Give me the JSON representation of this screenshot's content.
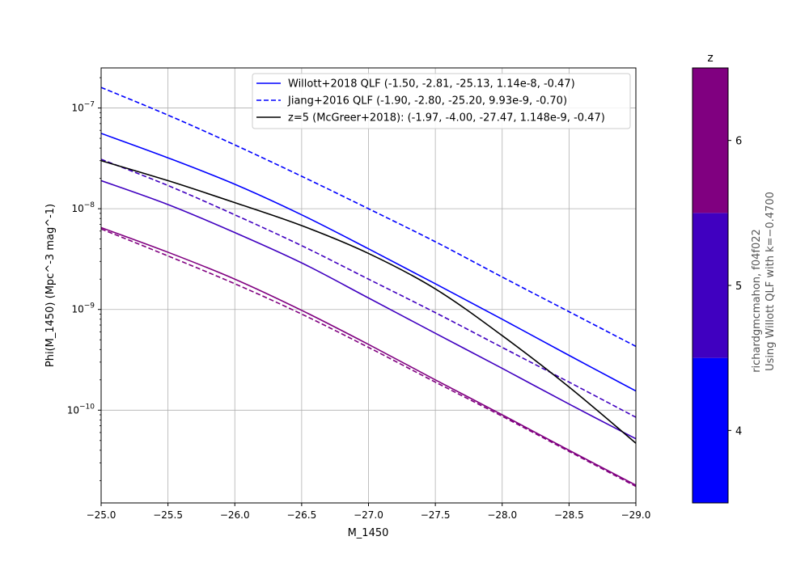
{
  "chart_data": {
    "type": "line",
    "xlabel": "M_1450",
    "ylabel": "Phi(M_1450) (Mpc^-3 mag^-1)",
    "xlim": [
      -25.0,
      -29.0
    ],
    "x_inverted": true,
    "ylim": [
      1.2e-11,
      2.5e-07
    ],
    "yscale": "log",
    "grid": true,
    "legend_position": "upper-right",
    "x_ticks": [
      {
        "value": -25.0,
        "label": "−25.0"
      },
      {
        "value": -25.5,
        "label": "−25.5"
      },
      {
        "value": -26.0,
        "label": "−26.0"
      },
      {
        "value": -26.5,
        "label": "−26.5"
      },
      {
        "value": -27.0,
        "label": "−27.0"
      },
      {
        "value": -27.5,
        "label": "−27.5"
      },
      {
        "value": -28.0,
        "label": "−28.0"
      },
      {
        "value": -28.5,
        "label": "−28.5"
      },
      {
        "value": -29.0,
        "label": "−29.0"
      }
    ],
    "y_ticks": [
      {
        "value": 1e-10,
        "base": "10",
        "exp": "−10"
      },
      {
        "value": 1e-09,
        "base": "10",
        "exp": "−9"
      },
      {
        "value": 1e-08,
        "base": "10",
        "exp": "−8"
      },
      {
        "value": 1e-07,
        "base": "10",
        "exp": "−7"
      }
    ],
    "legend": [
      {
        "label": "Willott+2018 QLF (-1.50, -2.81, -25.13, 1.14e-8, -0.47)",
        "color": "#0000ff",
        "dash": "solid"
      },
      {
        "label": "Jiang+2016 QLF (-1.90, -2.80, -25.20, 9.93e-9, -0.70)",
        "color": "#0000ff",
        "dash": "dashed"
      },
      {
        "label": "z=5 (McGreer+2018): (-1.97, -4.00, -27.47, 1.148e-9, -0.47)",
        "color": "#000000",
        "dash": "solid"
      }
    ],
    "series": [
      {
        "color": "#0000ff",
        "dash": "solid",
        "x": [
          -25.0,
          -25.5,
          -26.0,
          -26.5,
          -27.0,
          -27.5,
          -28.0,
          -28.5,
          -29.0
        ],
        "y": [
          5.6e-08,
          3.2e-08,
          1.75e-08,
          8.7e-09,
          4e-09,
          1.8e-09,
          8e-10,
          3.5e-10,
          1.55e-10
        ]
      },
      {
        "color": "#0000ff",
        "dash": "dashed",
        "x": [
          -25.0,
          -25.5,
          -26.0,
          -26.5,
          -27.0,
          -27.5,
          -28.0,
          -28.5,
          -29.0
        ],
        "y": [
          1.6e-07,
          8.5e-08,
          4.3e-08,
          2.1e-08,
          1e-08,
          4.7e-09,
          2.1e-09,
          9.5e-10,
          4.3e-10
        ]
      },
      {
        "color": "#4000c0",
        "dash": "solid",
        "x": [
          -25.0,
          -25.5,
          -26.0,
          -26.5,
          -27.0,
          -27.5,
          -28.0,
          -28.5,
          -29.0
        ],
        "y": [
          1.9e-08,
          1.1e-08,
          5.8e-09,
          2.9e-09,
          1.3e-09,
          5.8e-10,
          2.6e-10,
          1.15e-10,
          5.2e-11
        ]
      },
      {
        "color": "#4000c0",
        "dash": "dashed",
        "x": [
          -25.0,
          -25.5,
          -26.0,
          -26.5,
          -27.0,
          -27.5,
          -28.0,
          -28.5,
          -29.0
        ],
        "y": [
          3.1e-08,
          1.7e-08,
          8.7e-09,
          4.3e-09,
          2e-09,
          9.3e-10,
          4.2e-10,
          1.9e-10,
          8.5e-11
        ]
      },
      {
        "color": "#800080",
        "dash": "solid",
        "x": [
          -25.0,
          -25.5,
          -26.0,
          -26.5,
          -27.0,
          -27.5,
          -28.0,
          -28.5,
          -29.0
        ],
        "y": [
          6.5e-09,
          3.7e-09,
          2e-09,
          9.8e-10,
          4.5e-10,
          2e-10,
          9e-11,
          4e-11,
          1.8e-11
        ]
      },
      {
        "color": "#800080",
        "dash": "dashed",
        "x": [
          -25.0,
          -25.5,
          -26.0,
          -26.5,
          -27.0,
          -27.5,
          -28.0,
          -28.5,
          -29.0
        ],
        "y": [
          6.3e-09,
          3.4e-09,
          1.8e-09,
          9e-10,
          4.2e-10,
          1.9e-10,
          8.7e-11,
          3.9e-11,
          1.75e-11
        ]
      },
      {
        "color": "#000000",
        "dash": "solid",
        "x": [
          -25.0,
          -25.5,
          -26.0,
          -26.5,
          -27.0,
          -27.5,
          -28.0,
          -28.5,
          -29.0
        ],
        "y": [
          3e-08,
          1.9e-08,
          1.15e-08,
          6.8e-09,
          3.6e-09,
          1.6e-09,
          5.5e-10,
          1.7e-10,
          4.7e-11
        ]
      }
    ],
    "colorbar": {
      "title": "z",
      "range": [
        3.5,
        6.5
      ],
      "bands": [
        {
          "from": 3.5,
          "to": 4.5,
          "color": "#0000ff"
        },
        {
          "from": 4.5,
          "to": 5.5,
          "color": "#4000c0"
        },
        {
          "from": 5.5,
          "to": 6.5,
          "color": "#800080"
        }
      ],
      "ticks": [
        {
          "value": 4,
          "label": "4"
        },
        {
          "value": 5,
          "label": "5"
        },
        {
          "value": 6,
          "label": "6"
        }
      ],
      "side_text": [
        "richardgmcmahon, f04f022",
        "Using Willott QLF with k=−0.4700"
      ]
    }
  }
}
